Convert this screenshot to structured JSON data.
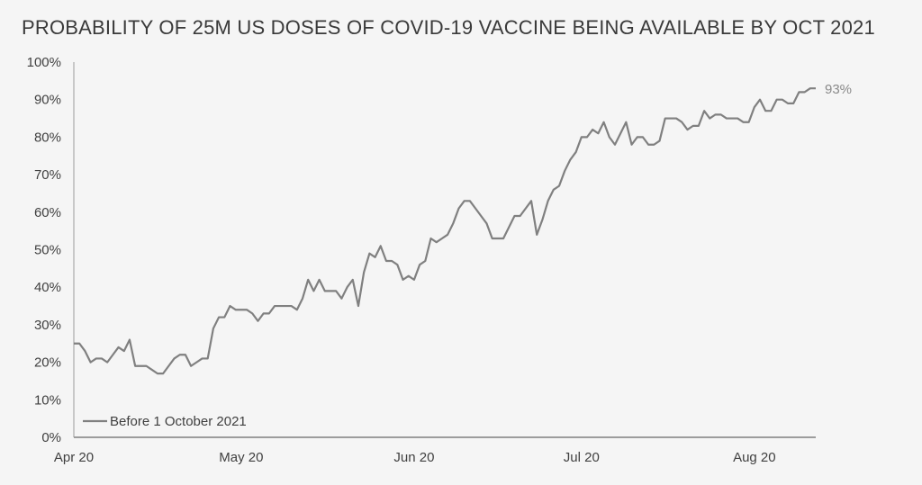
{
  "chart_data": {
    "type": "line",
    "title": "PROBABILITY OF 25M US DOSES OF COVID-19 VACCINE BEING AVAILABLE BY OCT 2021",
    "xlabel": "",
    "ylabel": "",
    "ylim": [
      0,
      100
    ],
    "yticks": [
      "0%",
      "10%",
      "20%",
      "30%",
      "40%",
      "50%",
      "60%",
      "70%",
      "80%",
      "90%",
      "100%"
    ],
    "xticks": [
      {
        "label": "Apr 20",
        "index": 0
      },
      {
        "label": "May 20",
        "index": 30
      },
      {
        "label": "Jun 20",
        "index": 61
      },
      {
        "label": "Jul 20",
        "index": 91
      },
      {
        "label": "Aug 20",
        "index": 122
      }
    ],
    "end_label": "93%",
    "legend": {
      "position": "bottom-left"
    },
    "grid": false,
    "series": [
      {
        "name": "Before 1 October 2021",
        "color": "#808080",
        "values": [
          25,
          25,
          23,
          20,
          21,
          21,
          20,
          22,
          24,
          23,
          26,
          19,
          19,
          19,
          18,
          17,
          17,
          19,
          21,
          22,
          22,
          19,
          20,
          21,
          21,
          29,
          32,
          32,
          35,
          34,
          34,
          34,
          33,
          31,
          33,
          33,
          35,
          35,
          35,
          35,
          34,
          37,
          42,
          39,
          42,
          39,
          39,
          39,
          37,
          40,
          42,
          35,
          44,
          49,
          48,
          51,
          47,
          47,
          46,
          42,
          43,
          42,
          46,
          47,
          53,
          52,
          53,
          54,
          57,
          61,
          63,
          63,
          61,
          59,
          57,
          53,
          53,
          53,
          56,
          59,
          59,
          61,
          63,
          54,
          58,
          63,
          66,
          67,
          71,
          74,
          76,
          80,
          80,
          82,
          81,
          84,
          80,
          78,
          81,
          84,
          78,
          80,
          80,
          78,
          78,
          79,
          85,
          85,
          85,
          84,
          82,
          83,
          83,
          87,
          85,
          86,
          86,
          85,
          85,
          85,
          84,
          84,
          88,
          90,
          87,
          87,
          90,
          90,
          89,
          89,
          92,
          92,
          93,
          93
        ]
      }
    ]
  }
}
